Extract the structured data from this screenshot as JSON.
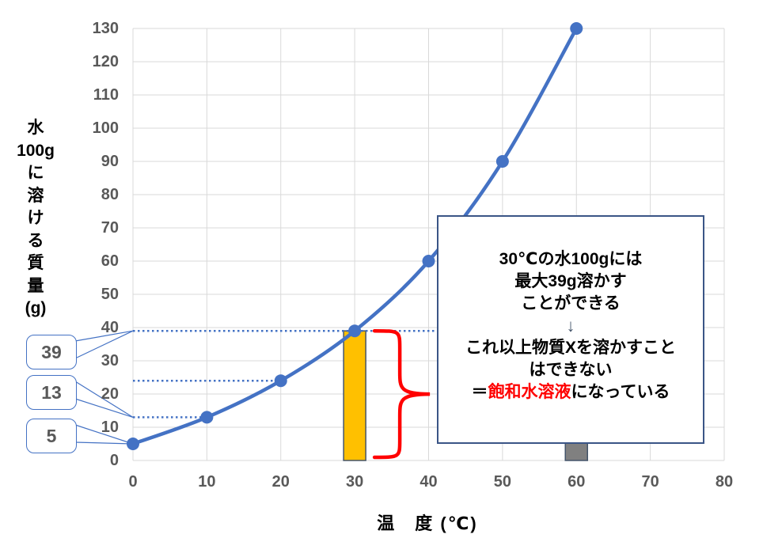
{
  "chart_data": {
    "type": "line",
    "title": "",
    "xlabel": "温　度 (℃)",
    "ylabel": "水100gに溶ける質量(g)",
    "ylabel_lines": [
      "水",
      "100g",
      "に",
      "溶",
      "け",
      "る",
      "質",
      "量",
      "(g)"
    ],
    "x": [
      0,
      10,
      20,
      30,
      40,
      50,
      60
    ],
    "y": [
      5,
      13,
      24,
      39,
      60,
      90,
      130
    ],
    "xlim": [
      0,
      80
    ],
    "ylim": [
      0,
      130
    ],
    "xticks": [
      0,
      10,
      20,
      30,
      40,
      50,
      60,
      70,
      80
    ],
    "yticks": [
      0,
      10,
      20,
      30,
      40,
      50,
      60,
      70,
      80,
      90,
      100,
      110,
      120,
      130
    ],
    "grid": true,
    "legend_position": "none",
    "line_color": "#4472C4",
    "marker_color": "#4472C4",
    "grid_color": "#D9D9D9"
  },
  "guides": {
    "color": "#4472C4",
    "dotted_lines": [
      {
        "y": 39,
        "x_start": 0,
        "x_end": 41.2
      },
      {
        "y": 24,
        "x_start": 0,
        "x_end": 20
      },
      {
        "y": 13,
        "x_start": 0,
        "x_end": 10
      }
    ]
  },
  "bars": [
    {
      "name": "highlight-bar-30",
      "x": 30,
      "y_bottom": 0,
      "y_top": 39,
      "fill": "#FFC000",
      "stroke": "#44546A"
    },
    {
      "name": "gray-bar-60",
      "x": 60,
      "y_bottom": 0,
      "y_top": 6,
      "fill": "#808080",
      "stroke": "#44546A"
    }
  ],
  "callouts": [
    {
      "label": "39",
      "points_to_y": 39
    },
    {
      "label": "13",
      "points_to_y": 13
    },
    {
      "label": "5",
      "points_to_y": 5
    }
  ],
  "brace": {
    "x": 30,
    "from_y": 0,
    "to_y": 39,
    "color": "#FF0000"
  },
  "annotation_box": {
    "lines": [
      [
        {
          "text": "30℃の水100gには",
          "color": "#000000"
        }
      ],
      [
        {
          "text": "最大39g溶かす",
          "color": "#000000"
        }
      ],
      [
        {
          "text": "ことができる",
          "color": "#000000"
        }
      ],
      [
        {
          "text": "↓",
          "color": "#44546A"
        }
      ],
      [
        {
          "text": "これ以上物質Xを溶かすこと",
          "color": "#000000"
        }
      ],
      [
        {
          "text": "はできない",
          "color": "#000000"
        }
      ],
      [
        {
          "text": "＝",
          "color": "#000000"
        },
        {
          "text": "飽和水溶液",
          "color": "#FF0000"
        },
        {
          "text": "になっている",
          "color": "#000000"
        }
      ]
    ]
  }
}
